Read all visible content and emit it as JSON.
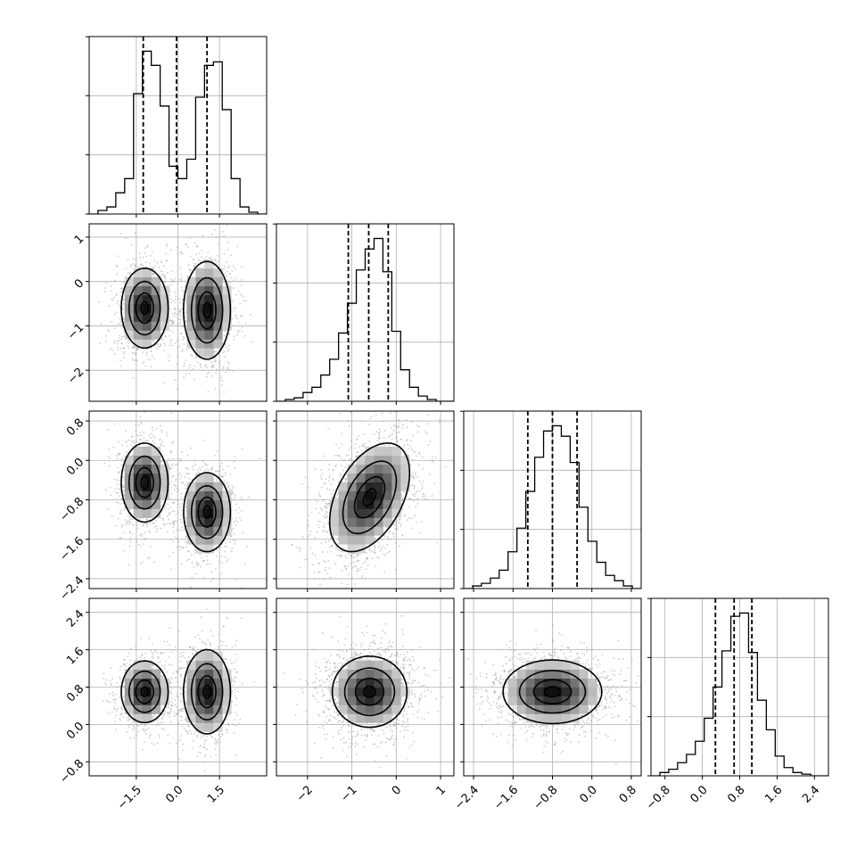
{
  "chart_data": {
    "type": "corner",
    "grid": true,
    "colors": {
      "hist": "#000000",
      "contour": "#000000",
      "points": "#9a9a9a",
      "grid": "#b0b0b0"
    },
    "params": [
      {
        "range": [
          -3.2,
          3.2
        ],
        "ticks": [
          -1.5,
          0.0,
          1.5
        ],
        "tick_labels": [
          "−1.5",
          "0.0",
          "1.5"
        ],
        "quantiles": [
          -1.25,
          -0.05,
          1.05
        ],
        "hist": {
          "edges": [
            -3.2,
            -2.88,
            -2.56,
            -2.24,
            -1.92,
            -1.6,
            -1.28,
            -0.96,
            -0.64,
            -0.32,
            0.0,
            0.32,
            0.64,
            0.96,
            1.28,
            1.6,
            1.92,
            2.24,
            2.56,
            2.88,
            3.2
          ],
          "counts": [
            0,
            2,
            4,
            12,
            20,
            68,
            92,
            84,
            61,
            27,
            20,
            31,
            66,
            84,
            86,
            59,
            20,
            4,
            1,
            0
          ]
        }
      },
      {
        "range": [
          -2.7,
          1.3
        ],
        "ticks": [
          -2,
          -1,
          0,
          1
        ],
        "tick_labels": [
          "−2",
          "−1",
          "0",
          "1"
        ],
        "quantiles": [
          -1.08,
          -0.62,
          -0.18
        ],
        "hist": {
          "edges": [
            -2.7,
            -2.5,
            -2.3,
            -2.1,
            -1.9,
            -1.7,
            -1.5,
            -1.3,
            -1.1,
            -0.9,
            -0.7,
            -0.5,
            -0.3,
            -0.1,
            0.1,
            0.3,
            0.5,
            0.7,
            0.9,
            1.1,
            1.3
          ],
          "counts": [
            0,
            1,
            2,
            5,
            8,
            15,
            24,
            39,
            56,
            75,
            87,
            93,
            74,
            40,
            18,
            8,
            3,
            1,
            0,
            0
          ]
        }
      },
      {
        "range": [
          -2.6,
          1.0
        ],
        "ticks": [
          -2.4,
          -1.6,
          -0.8,
          0.0,
          0.8
        ],
        "tick_labels": [
          "−2.4",
          "−1.6",
          "−0.8",
          "0.0",
          "0.8"
        ],
        "quantiles": [
          -1.3,
          -0.8,
          -0.3
        ],
        "hist": {
          "edges": [
            -2.6,
            -2.42,
            -2.24,
            -2.06,
            -1.88,
            -1.7,
            -1.52,
            -1.34,
            -1.16,
            -0.98,
            -0.8,
            -0.62,
            -0.44,
            -0.26,
            -0.08,
            0.1,
            0.28,
            0.46,
            0.64,
            0.82,
            1.0
          ],
          "counts": [
            0,
            1,
            2,
            4,
            7,
            14,
            23,
            37,
            50,
            60,
            62,
            58,
            48,
            31,
            18,
            10,
            5,
            3,
            1,
            0
          ]
        }
      },
      {
        "range": [
          -1.1,
          2.7
        ],
        "ticks": [
          -0.8,
          0.0,
          0.8,
          1.6,
          2.4
        ],
        "tick_labels": [
          "−0.8",
          "0.0",
          "0.8",
          "1.6",
          "2.4"
        ],
        "quantiles": [
          0.28,
          0.68,
          1.06
        ],
        "hist": {
          "edges": [
            -1.1,
            -0.91,
            -0.72,
            -0.53,
            -0.34,
            -0.15,
            0.04,
            0.23,
            0.42,
            0.61,
            0.8,
            0.99,
            1.18,
            1.37,
            1.56,
            1.75,
            1.94,
            2.13,
            2.32,
            2.51,
            2.7
          ],
          "counts": [
            0,
            2,
            4,
            8,
            13,
            21,
            35,
            54,
            76,
            97,
            99,
            75,
            46,
            28,
            12,
            5,
            2,
            1,
            0,
            0
          ]
        }
      }
    ],
    "densities": [
      {
        "row": 1,
        "col": 0,
        "modes": [
          {
            "cx": -1.2,
            "cy": -0.6,
            "sx": 0.42,
            "sy": 0.45,
            "rho": 0.0,
            "w": 1.0
          },
          {
            "cx": 1.05,
            "cy": -0.65,
            "sx": 0.42,
            "sy": 0.55,
            "rho": 0.0,
            "w": 1.0
          }
        ]
      },
      {
        "row": 2,
        "col": 0,
        "modes": [
          {
            "cx": -1.2,
            "cy": -0.45,
            "sx": 0.42,
            "sy": 0.4,
            "rho": 0.0,
            "w": 1.0
          },
          {
            "cx": 1.05,
            "cy": -1.05,
            "sx": 0.42,
            "sy": 0.4,
            "rho": 0.0,
            "w": 1.0
          }
        ]
      },
      {
        "row": 2,
        "col": 1,
        "modes": [
          {
            "cx": -0.6,
            "cy": -0.75,
            "sx": 0.45,
            "sy": 0.55,
            "rho": 0.45,
            "w": 1.0
          }
        ]
      },
      {
        "row": 3,
        "col": 0,
        "modes": [
          {
            "cx": -1.2,
            "cy": 0.7,
            "sx": 0.42,
            "sy": 0.33,
            "rho": 0.0,
            "w": 1.0
          },
          {
            "cx": 1.05,
            "cy": 0.7,
            "sx": 0.42,
            "sy": 0.45,
            "rho": 0.0,
            "w": 1.0
          }
        ]
      },
      {
        "row": 3,
        "col": 1,
        "modes": [
          {
            "cx": -0.6,
            "cy": 0.7,
            "sx": 0.42,
            "sy": 0.38,
            "rho": 0.0,
            "w": 1.0
          }
        ]
      },
      {
        "row": 3,
        "col": 2,
        "modes": [
          {
            "cx": -0.8,
            "cy": 0.7,
            "sx": 0.5,
            "sy": 0.34,
            "rho": 0.0,
            "w": 1.0
          }
        ]
      }
    ]
  }
}
